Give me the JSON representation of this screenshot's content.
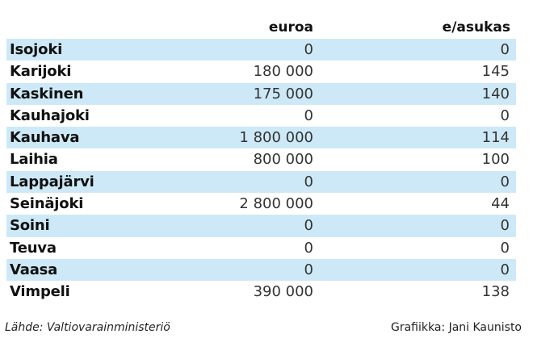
{
  "chart_data": {
    "type": "table",
    "columns": [
      "",
      "euroa",
      "e/asukas"
    ],
    "rows": [
      {
        "name": "Isojoki",
        "euroa": "0",
        "asukas": "0"
      },
      {
        "name": "Karijoki",
        "euroa": "180 000",
        "asukas": "145"
      },
      {
        "name": "Kaskinen",
        "euroa": "175 000",
        "asukas": "140"
      },
      {
        "name": "Kauhajoki",
        "euroa": "0",
        "asukas": "0"
      },
      {
        "name": "Kauhava",
        "euroa": "1 800 000",
        "asukas": "114"
      },
      {
        "name": "Laihia",
        "euroa": "800 000",
        "asukas": "100"
      },
      {
        "name": "Lappajärvi",
        "euroa": "0",
        "asukas": "0"
      },
      {
        "name": "Seinäjoki",
        "euroa": "2 800 000",
        "asukas": "44"
      },
      {
        "name": "Soini",
        "euroa": "0",
        "asukas": "0"
      },
      {
        "name": "Teuva",
        "euroa": "0",
        "asukas": "0"
      },
      {
        "name": "Vaasa",
        "euroa": "0",
        "asukas": "0"
      },
      {
        "name": "Vimpeli",
        "euroa": "390 000",
        "asukas": "138"
      }
    ],
    "row_shade_color": "#cde9f7",
    "source": "Lähde: Valtiovarainministeriö",
    "credit": "Grafiikka: Jani Kaunisto"
  }
}
